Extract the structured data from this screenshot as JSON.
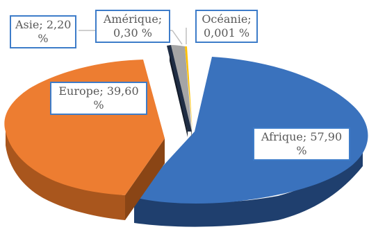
{
  "chart_data": {
    "type": "pie",
    "title": "",
    "slices": [
      {
        "label": "Afrique",
        "value": 57.9,
        "text_line1": "Afrique; 57,90",
        "text_line2": "%",
        "color": "#3a72bd",
        "side_color": "#1f3f6e"
      },
      {
        "label": "Europe",
        "value": 39.6,
        "text_line1": "Europe; 39,60",
        "text_line2": "%",
        "color": "#ed7d31",
        "side_color": "#a9561d"
      },
      {
        "label": "Asie",
        "value": 2.2,
        "text_line1": "Asie; 2,20",
        "text_line2": "%",
        "color": "#a5a5a5",
        "side_color": "#6b6b6b"
      },
      {
        "label": "Amérique",
        "value": 0.3,
        "text_line1": "Amérique;",
        "text_line2": "0,30 %",
        "color": "#1f2d44",
        "side_color": "#121a27"
      },
      {
        "label": "Océanie",
        "value": 0.001,
        "text_line1": "Océanie;",
        "text_line2": "0,001 %",
        "color": "#ffc000",
        "side_color": "#b38600"
      }
    ],
    "exploded": true,
    "style": "3d",
    "leader_line_color": "#bfbfbf"
  }
}
